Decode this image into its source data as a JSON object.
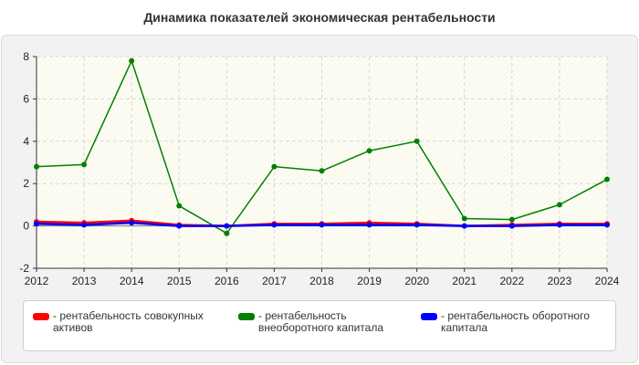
{
  "chart_data": {
    "type": "line",
    "title": "Динамика показателей экономическая рентабельности",
    "xlabel": "",
    "ylabel": "",
    "x": [
      2012,
      2013,
      2014,
      2015,
      2016,
      2017,
      2018,
      2019,
      2020,
      2021,
      2022,
      2023,
      2024
    ],
    "ylim": [
      -2,
      8
    ],
    "yticks": [
      -2,
      0,
      2,
      4,
      6,
      8
    ],
    "grid": true,
    "legend_position": "bottom",
    "series": [
      {
        "name": "- рентабельность совокупных активов",
        "color": "#ff0000",
        "values": [
          0.2,
          0.15,
          0.25,
          0.05,
          0.0,
          0.1,
          0.1,
          0.15,
          0.1,
          0.0,
          0.05,
          0.1,
          0.1
        ]
      },
      {
        "name": "- рентабельность внеоборотного капитала",
        "color": "#008000",
        "values": [
          2.8,
          2.9,
          7.8,
          0.95,
          -0.35,
          2.8,
          2.6,
          3.55,
          4.0,
          0.35,
          0.3,
          1.0,
          2.2
        ]
      },
      {
        "name": "- рентабельность оборотного капитала",
        "color": "#0000ff",
        "values": [
          0.1,
          0.05,
          0.15,
          0.0,
          0.0,
          0.05,
          0.05,
          0.05,
          0.05,
          0.0,
          0.0,
          0.05,
          0.05
        ]
      }
    ]
  }
}
